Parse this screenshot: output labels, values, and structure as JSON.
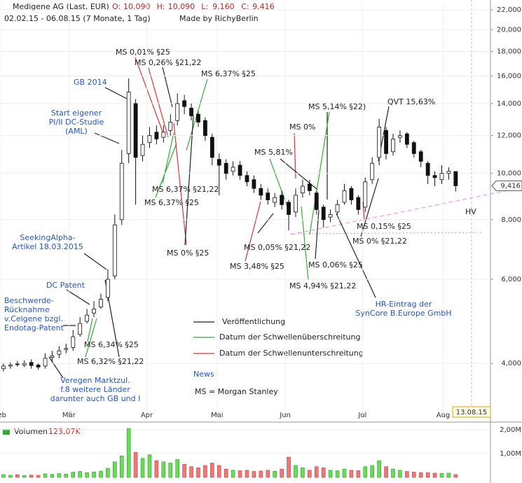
{
  "header": {
    "name": "Medigene AG (Last, EUR)",
    "ohlc": [
      {
        "label": "O:",
        "value": "10,090"
      },
      {
        "label": "H:",
        "value": "10,090"
      },
      {
        "label": "L:",
        "value": "9,160"
      },
      {
        "label": "C:",
        "value": "9,416"
      }
    ],
    "range": "02.02.15 - 06.08.15 (7 Monate, 1 Tag)",
    "credit": "Made by RichyBerlin"
  },
  "chart_data": {
    "type": "candlestick",
    "log_scale": true,
    "grid": true,
    "up_color": "#ffffff",
    "down_color": "#111111",
    "volume_up_color": "#66dd55",
    "volume_down_color": "#ee7777",
    "open": [
      3.9,
      3.95,
      3.99,
      3.97,
      4.02,
      3.97,
      3.95,
      4.12,
      4.18,
      4.28,
      4.32,
      4.6,
      4.9,
      5.1,
      5.25,
      5.5,
      6.1,
      8.0,
      11.0,
      14.0,
      10.9,
      11.6,
      12.2,
      11.9,
      12.3,
      12.9,
      14.2,
      13.7,
      13.3,
      12.9,
      11.9,
      10.7,
      10.5,
      10.1,
      10.4,
      9.9,
      9.7,
      9.3,
      9.1,
      8.7,
      9.0,
      8.7,
      8.3,
      9.1,
      9.5,
      9.1,
      8.5,
      8.1,
      8.3,
      8.7,
      9.3,
      8.9,
      8.5,
      9.7,
      10.8,
      12.3,
      11.1,
      11.9,
      12.1,
      11.6,
      11.1,
      10.5,
      9.9,
      9.7,
      10.0,
      10.09
    ],
    "high": [
      4.0,
      4.02,
      4.05,
      4.06,
      4.08,
      4.0,
      4.2,
      4.25,
      4.35,
      4.4,
      4.7,
      5.0,
      5.2,
      5.4,
      5.6,
      6.3,
      8.2,
      11.2,
      15.8,
      14.3,
      12.0,
      12.5,
      12.6,
      12.6,
      13.3,
      14.7,
      14.6,
      14.0,
      13.5,
      13.1,
      12.1,
      11.0,
      10.7,
      10.6,
      10.6,
      10.1,
      9.9,
      9.5,
      9.3,
      9.1,
      9.2,
      8.8,
      9.3,
      9.7,
      9.7,
      9.2,
      8.6,
      8.4,
      8.8,
      9.5,
      9.4,
      9.0,
      9.8,
      10.8,
      13.0,
      12.5,
      12.1,
      12.3,
      12.2,
      11.7,
      11.2,
      10.6,
      10.1,
      10.4,
      10.3,
      10.09
    ],
    "low": [
      3.85,
      3.9,
      3.94,
      3.93,
      3.9,
      3.88,
      3.9,
      4.05,
      4.1,
      4.2,
      4.25,
      4.55,
      4.85,
      5.0,
      5.2,
      5.4,
      6.0,
      7.8,
      10.5,
      8.6,
      10.6,
      11.3,
      11.5,
      11.6,
      12.0,
      12.6,
      13.3,
      12.9,
      12.5,
      11.7,
      10.4,
      9.0,
      9.7,
      9.9,
      9.7,
      9.4,
      9.1,
      8.8,
      8.6,
      8.5,
      8.4,
      7.6,
      8.1,
      8.9,
      9.0,
      8.2,
      7.7,
      7.9,
      8.2,
      8.6,
      8.6,
      8.2,
      8.3,
      9.5,
      10.4,
      10.7,
      10.9,
      11.6,
      11.3,
      10.8,
      10.3,
      9.5,
      9.4,
      9.5,
      9.7,
      9.16
    ],
    "close": [
      3.95,
      3.97,
      3.98,
      4.0,
      3.96,
      3.93,
      4.1,
      4.15,
      4.25,
      4.3,
      4.55,
      4.85,
      5.05,
      5.2,
      5.45,
      6.0,
      7.8,
      10.5,
      14.8,
      10.8,
      11.5,
      12.0,
      11.8,
      12.2,
      12.8,
      14.0,
      13.8,
      13.2,
      12.8,
      12.0,
      10.8,
      10.4,
      10.0,
      10.3,
      9.9,
      9.6,
      9.3,
      9.0,
      8.8,
      8.9,
      8.6,
      8.2,
      9.0,
      9.4,
      9.2,
      8.4,
      8.0,
      8.2,
      8.6,
      9.2,
      8.8,
      8.4,
      9.6,
      10.5,
      12.5,
      11.0,
      11.8,
      12.0,
      11.5,
      11.0,
      10.6,
      9.9,
      9.8,
      10.0,
      10.1,
      9.42
    ],
    "volume": [
      120000,
      90000,
      110000,
      80000,
      100000,
      90000,
      150000,
      130000,
      160000,
      140000,
      220000,
      250000,
      200000,
      230000,
      260000,
      380000,
      650000,
      900000,
      2050000,
      1050000,
      800000,
      950000,
      700000,
      650000,
      600000,
      750000,
      550000,
      450000,
      400000,
      500000,
      600000,
      500000,
      350000,
      300000,
      280000,
      300000,
      250000,
      270000,
      300000,
      260000,
      350000,
      850000,
      500000,
      400000,
      300000,
      450000,
      400000,
      300000,
      280000,
      350000,
      300000,
      280000,
      450000,
      500000,
      700000,
      450000,
      350000,
      300000,
      250000,
      220000,
      200000,
      200000,
      180000,
      170000,
      180000,
      123070
    ],
    "volume_title": "Volumen",
    "volume_label": "123,07K",
    "xlim": [
      -0.5,
      70
    ],
    "xticks": [
      {
        "value": -0.5,
        "label": "Feb"
      },
      {
        "value": 9.4,
        "label": "Mär"
      },
      {
        "value": 20.6,
        "label": "Apr"
      },
      {
        "value": 30.7,
        "label": "Mai"
      },
      {
        "value": 40.5,
        "label": "Jun"
      },
      {
        "value": 51.6,
        "label": "Jul"
      },
      {
        "value": 63.2,
        "label": "Aug"
      }
    ],
    "ylim": [
      3.15,
      22.68
    ],
    "yticks": [
      {
        "value": 4,
        "label": "4,000"
      },
      {
        "value": 6,
        "label": "6,000"
      },
      {
        "value": 8,
        "label": "8,000"
      },
      {
        "value": 10,
        "label": "10,000"
      },
      {
        "value": 12,
        "label": "12,000"
      },
      {
        "value": 14,
        "label": "14,000"
      },
      {
        "value": 16,
        "label": "16,000"
      },
      {
        "value": 18,
        "label": "18,000"
      },
      {
        "value": 20,
        "label": "20,000"
      },
      {
        "value": 22,
        "label": "22,000"
      }
    ],
    "y2lim": [
      0,
      2260000
    ],
    "y2ticks": [
      {
        "value": 1000000,
        "label": "1,00M"
      },
      {
        "value": 2000000,
        "label": "2,00M"
      }
    ],
    "date_marker": "13.08.15",
    "hv_label": "HV",
    "legend": [
      "Veröffentlichung",
      "Datum der Schwellenüberschreitung",
      "Datum der Schwellenunterschreitung",
      "News",
      "MS = Morgan Stanley"
    ],
    "annotations": [
      {
        "lines": [
          "MS 0,01% §25"
        ],
        "color": "#222222"
      },
      {
        "lines": [
          "MS 0,26% §21,22"
        ],
        "color": "#222222"
      },
      {
        "lines": [
          "MS 6,37% §25"
        ],
        "color": "#222222"
      },
      {
        "lines": [
          "GB 2014"
        ],
        "color": "#2255cc"
      },
      {
        "lines": [
          "Start eigener",
          "PI/II DC-Studie",
          "(AML)"
        ],
        "color": "#2255cc"
      },
      {
        "lines": [
          "MS 6,37% §21,22"
        ],
        "color": "#222222"
      },
      {
        "lines": [
          "MS 6,37% §25"
        ],
        "color": "#222222"
      },
      {
        "lines": [
          "MS 0% §25"
        ],
        "color": "#222222"
      },
      {
        "lines": [
          "MS 5,14% §22)"
        ],
        "color": "#222222"
      },
      {
        "lines": [
          "MS 0%"
        ],
        "color": "#222222"
      },
      {
        "lines": [
          "QVT 15,63%"
        ],
        "color": "#222222"
      },
      {
        "lines": [
          "MS 5,81%"
        ],
        "color": "#222222"
      },
      {
        "lines": [
          "MS 0,05% §21,22"
        ],
        "color": "#222222"
      },
      {
        "lines": [
          "MS 3,48% §25"
        ],
        "color": "#222222"
      },
      {
        "lines": [
          "MS 0,06% §25"
        ],
        "color": "#222222"
      },
      {
        "lines": [
          "MS 4,94% §21,22"
        ],
        "color": "#222222"
      },
      {
        "lines": [
          "MS 0,15% §25"
        ],
        "color": "#222222"
      },
      {
        "lines": [
          "MS 0% §21,22"
        ],
        "color": "#222222"
      },
      {
        "lines": [
          "HR-Eintrag der",
          "SynCore B.Europe GmbH"
        ],
        "color": "#2255cc"
      },
      {
        "lines": [
          "SeekingAlpha-",
          "Artikel 18.03.2015"
        ],
        "color": "#2255cc"
      },
      {
        "lines": [
          "DC Patent"
        ],
        "color": "#2255cc"
      },
      {
        "lines": [
          "Beschwerde-",
          "Rücknahme",
          "v.Celgene bzgl.",
          "Endotag-Patent"
        ],
        "color": "#2255cc"
      },
      {
        "lines": [
          "MS 6,34% §25"
        ],
        "color": "#222222"
      },
      {
        "lines": [
          "MS 6,32% §21,22"
        ],
        "color": "#222222"
      },
      {
        "lines": [
          "Veregen Marktzul.",
          "f.8 weitere Länder",
          "darunter auch GB und I"
        ],
        "color": "#2255cc"
      }
    ]
  }
}
